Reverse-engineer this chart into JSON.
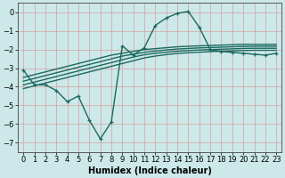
{
  "xlabel": "Humidex (Indice chaleur)",
  "ylabel": "",
  "bg_color": "#cce8e8",
  "grid_color": "#d4a0a0",
  "line_color": "#1a6a60",
  "xlim": [
    -0.5,
    23.5
  ],
  "ylim": [
    -7.5,
    0.5
  ],
  "yticks": [
    0,
    -1,
    -2,
    -3,
    -4,
    -5,
    -6,
    -7
  ],
  "xticks": [
    0,
    1,
    2,
    3,
    4,
    5,
    6,
    7,
    8,
    9,
    10,
    11,
    12,
    13,
    14,
    15,
    16,
    17,
    18,
    19,
    20,
    21,
    22,
    23
  ],
  "main_line": [
    -3.1,
    -3.9,
    -3.9,
    -4.2,
    -4.8,
    -4.5,
    -5.8,
    -6.8,
    -5.9,
    -1.8,
    -2.3,
    -1.9,
    -0.7,
    -0.3,
    -0.05,
    0.05,
    -0.8,
    -2.0,
    -2.1,
    -2.15,
    -2.2,
    -2.25,
    -2.3,
    -2.2
  ],
  "reg_lines": [
    [
      -3.5,
      -3.35,
      -3.2,
      -3.05,
      -2.9,
      -2.75,
      -2.6,
      -2.45,
      -2.3,
      -2.2,
      -2.1,
      -2.0,
      -1.95,
      -1.9,
      -1.85,
      -1.82,
      -1.8,
      -1.78,
      -1.76,
      -1.74,
      -1.72,
      -1.72,
      -1.72,
      -1.72
    ],
    [
      -3.7,
      -3.55,
      -3.4,
      -3.25,
      -3.1,
      -2.95,
      -2.8,
      -2.65,
      -2.5,
      -2.35,
      -2.25,
      -2.15,
      -2.08,
      -2.02,
      -1.97,
      -1.94,
      -1.91,
      -1.89,
      -1.87,
      -1.85,
      -1.83,
      -1.82,
      -1.82,
      -1.82
    ],
    [
      -3.9,
      -3.75,
      -3.6,
      -3.45,
      -3.3,
      -3.15,
      -3.0,
      -2.85,
      -2.7,
      -2.55,
      -2.4,
      -2.28,
      -2.2,
      -2.14,
      -2.09,
      -2.05,
      -2.02,
      -2.0,
      -1.98,
      -1.96,
      -1.94,
      -1.93,
      -1.93,
      -1.93
    ],
    [
      -4.1,
      -3.95,
      -3.8,
      -3.65,
      -3.5,
      -3.35,
      -3.2,
      -3.05,
      -2.9,
      -2.75,
      -2.6,
      -2.45,
      -2.35,
      -2.27,
      -2.21,
      -2.17,
      -2.14,
      -2.11,
      -2.09,
      -2.07,
      -2.05,
      -2.04,
      -2.04,
      -2.04
    ]
  ],
  "marker_size": 3.5,
  "line_width": 1.0,
  "tick_fontsize": 6.0
}
